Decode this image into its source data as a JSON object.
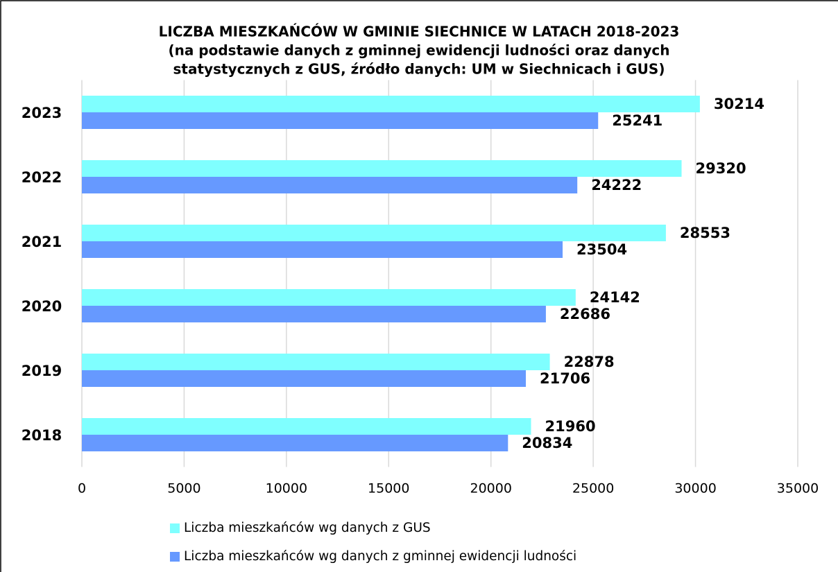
{
  "chart_data": {
    "type": "hbar",
    "title": [
      "LICZBA MIESZKAŃCÓW W GMINIE SIECHNICE W LATACH 2018-2023",
      "(na podstawie danych z gminnej ewidencji ludności oraz danych",
      "statystycznych z GUS, źródło danych: UM w Siechnicach i GUS)"
    ],
    "categories": [
      "2018",
      "2019",
      "2020",
      "2021",
      "2022",
      "2023"
    ],
    "series": [
      {
        "name": "Liczba mieszkańców wg danych z GUS",
        "color": "#7fffff",
        "values": [
          21960,
          22878,
          24142,
          28553,
          29320,
          30214
        ]
      },
      {
        "name": "Liczba mieszkańców wg danych z gminnej ewidencji ludności",
        "color": "#6699ff",
        "values": [
          20834,
          21706,
          22686,
          23504,
          24222,
          25241
        ]
      }
    ],
    "xlim": [
      0,
      35000
    ],
    "xticks": [
      0,
      5000,
      10000,
      15000,
      20000,
      25000,
      30000,
      35000
    ],
    "grid": true,
    "legend": "bottom"
  }
}
